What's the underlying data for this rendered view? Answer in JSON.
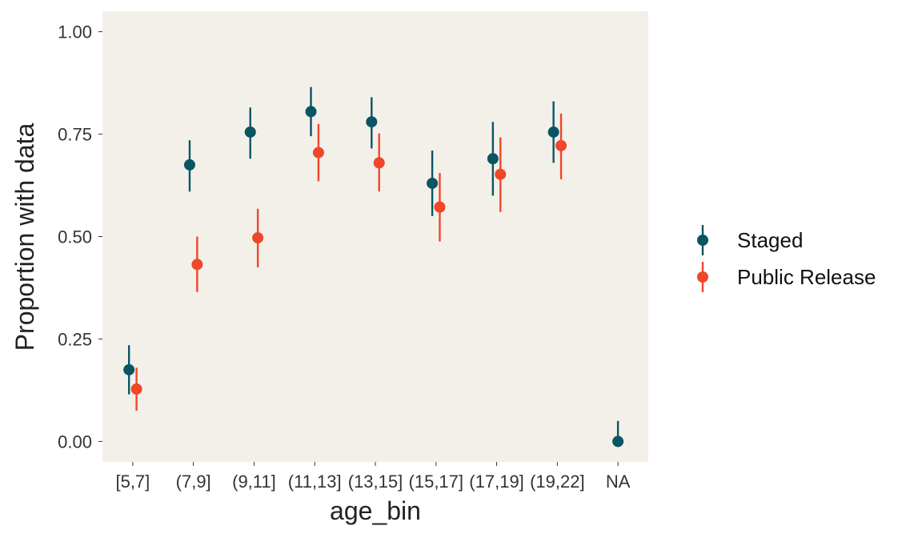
{
  "chart_data": {
    "type": "scatter",
    "subtype": "pointrange",
    "xlabel": "age_bin",
    "ylabel": "Proportion with data",
    "categories": [
      "[5,7]",
      "(7,9]",
      "(9,11]",
      "(11,13]",
      "(13,15]",
      "(15,17]",
      "(17,19]",
      "(19,22]",
      "NA"
    ],
    "ylim": [
      -0.05,
      1.05
    ],
    "yticks": [
      0.0,
      0.25,
      0.5,
      0.75,
      1.0
    ],
    "ytick_labels": [
      "0.00",
      "0.25",
      "0.50",
      "0.75",
      "1.00"
    ],
    "grid": false,
    "legend": "right",
    "series": [
      {
        "name": "Staged",
        "color": "#0b5563",
        "values": [
          0.175,
          0.675,
          0.755,
          0.805,
          0.78,
          0.63,
          0.69,
          0.755,
          0.0
        ],
        "lower": [
          0.115,
          0.61,
          0.69,
          0.745,
          0.715,
          0.55,
          0.6,
          0.68,
          0.0
        ],
        "upper": [
          0.235,
          0.735,
          0.815,
          0.865,
          0.84,
          0.71,
          0.78,
          0.83,
          0.05
        ]
      },
      {
        "name": "Public Release",
        "color": "#f0462a",
        "values": [
          0.128,
          0.432,
          0.497,
          0.705,
          0.68,
          0.572,
          0.652,
          0.722,
          null
        ],
        "lower": [
          0.075,
          0.365,
          0.425,
          0.635,
          0.61,
          0.488,
          0.56,
          0.64,
          null
        ],
        "upper": [
          0.18,
          0.5,
          0.568,
          0.775,
          0.752,
          0.655,
          0.742,
          0.8,
          null
        ]
      }
    ]
  }
}
